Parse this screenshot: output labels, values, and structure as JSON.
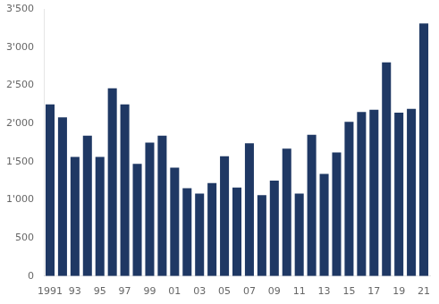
{
  "chart_data": {
    "type": "bar",
    "categories": [
      "1991",
      null,
      "93",
      null,
      "95",
      null,
      "97",
      null,
      "99",
      null,
      "01",
      null,
      "03",
      null,
      "05",
      null,
      "07",
      null,
      "09",
      null,
      "11",
      null,
      "13",
      null,
      "15",
      null,
      "17",
      null,
      "19",
      null,
      "21"
    ],
    "values": [
      2250,
      2080,
      1560,
      1840,
      1560,
      2460,
      2250,
      1470,
      1750,
      1840,
      1420,
      1150,
      1080,
      1220,
      1570,
      1160,
      1740,
      1060,
      1250,
      1670,
      1080,
      1850,
      1340,
      1620,
      2020,
      2150,
      2180,
      2800,
      2140,
      2190,
      3310
    ],
    "color": "#1F3864",
    "ylim": [
      0,
      3500
    ],
    "yticks": [
      0,
      500,
      {
        "value": 1000,
        "label": "1'000"
      },
      {
        "value": 1500,
        "label": "1'500"
      },
      {
        "value": 2000,
        "label": "2'000"
      },
      {
        "value": 2500,
        "label": "2'500"
      },
      {
        "value": 3000,
        "label": "3'000"
      },
      {
        "value": 3500,
        "label": "3'500"
      }
    ],
    "grid": false
  }
}
